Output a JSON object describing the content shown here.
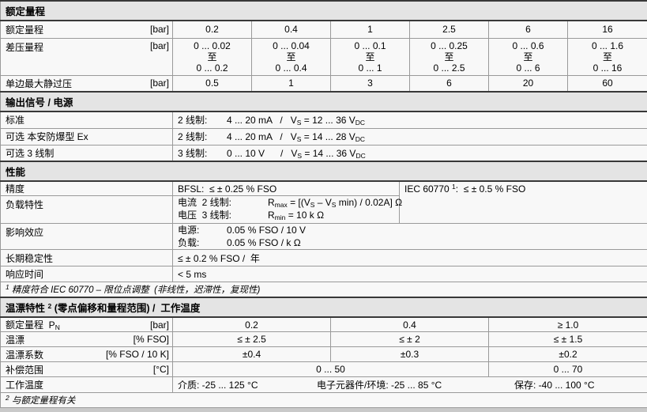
{
  "colors": {
    "header_bg": "#e4e4e4",
    "row_bg": "#f8f8f8",
    "border": "#9a9a9a",
    "dark_border": "#383838",
    "strip": "#c9c9c9"
  },
  "sections": {
    "rated_range": {
      "title": "额定量程",
      "rated": {
        "label": "额定量程",
        "unit": "[bar]",
        "values": [
          "0.2",
          "0.4",
          "1",
          "2.5",
          "6",
          "16"
        ]
      },
      "differential": {
        "label": "差压量程",
        "unit": "[bar]",
        "values": [
          "0 ... 0.02\n至\n0 ... 0.2",
          "0 ... 0.04\n至\n0 ... 0.4",
          "0 ... 0.1\n至\n0 ... 1",
          "0 ... 0.25\n至\n0 ... 2.5",
          "0 ... 0.6\n至\n0 ... 6",
          "0 ... 1.6\n至\n0 ... 16"
        ]
      },
      "max_static_overpressure": {
        "label": "单边最大静过压",
        "unit": "[bar]",
        "values": [
          "0.5",
          "1",
          "3",
          "6",
          "20",
          "60"
        ]
      }
    },
    "output_signal": {
      "title": "输出信号 / 电源",
      "standard": {
        "label": "标准",
        "wire": "2 线制:",
        "value": [
          {
            "t": "4 ... 20 mA   /   V"
          },
          {
            "t": "S",
            "sub": true
          },
          {
            "t": " = 12 ... 36 V"
          },
          {
            "t": "DC",
            "sub": true
          }
        ]
      },
      "ex_option": {
        "label": "可选  本安防爆型 Ex",
        "wire": "2 线制:",
        "value": [
          {
            "t": "4 ... 20 mA   /   V"
          },
          {
            "t": "S",
            "sub": true
          },
          {
            "t": " = 14 ... 28 V"
          },
          {
            "t": "DC",
            "sub": true
          }
        ]
      },
      "three_wire_option": {
        "label": "可选  3 线制",
        "wire": "3 线制:",
        "value": [
          {
            "t": "0 ... 10 V      /   V"
          },
          {
            "t": "S",
            "sub": true
          },
          {
            "t": " = 14 ... 36 V"
          },
          {
            "t": "DC",
            "sub": true
          }
        ]
      }
    },
    "performance": {
      "title": "性能",
      "accuracy": {
        "label": "精度",
        "bfsl": "BFSL:  ≤ ± 0.25 % FSO",
        "iec": [
          {
            "t": "IEC 60770 "
          },
          {
            "t": "1",
            "sup": true
          },
          {
            "t": ":  ≤ ± 0.5 % FSO"
          }
        ]
      },
      "load": {
        "label": "负载特性",
        "current": {
          "wire": "电流  2 线制:",
          "value": [
            {
              "t": "R"
            },
            {
              "t": "max",
              "sub": true
            },
            {
              "t": " = [(V"
            },
            {
              "t": "S",
              "sub": true
            },
            {
              "t": " – V"
            },
            {
              "t": "S",
              "sub": true
            },
            {
              "t": " min) / 0.02A] Ω"
            }
          ]
        },
        "voltage": {
          "wire": "电压  3 线制:",
          "value": [
            {
              "t": "R"
            },
            {
              "t": "min",
              "sub": true
            },
            {
              "t": " = 10 k Ω"
            }
          ]
        }
      },
      "influence": {
        "label": "影响效应",
        "supply": {
          "wire": "电源:",
          "value": "0.05 % FSO / 10 V"
        },
        "load": {
          "wire": "负载:",
          "value": "0.05 % FSO / k Ω"
        }
      },
      "stability": {
        "label": "长期稳定性",
        "value": "≤ ± 0.2 % FSO /  年"
      },
      "response": {
        "label": "响应时间",
        "value": "< 5 ms"
      },
      "footnote": [
        {
          "t": "1",
          "sup": true
        },
        {
          "t": " 精度符合 IEC 60770 – 限位点调整  (非线性，迟滞性，复现性)"
        }
      ]
    },
    "temperature": {
      "title": [
        {
          "t": "温漂特性 "
        },
        {
          "t": "2",
          "sup": true
        },
        {
          "t": " (零点偏移和量程范围) /  工作温度"
        }
      ],
      "nominal": {
        "label": [
          {
            "t": "额定量程  P"
          },
          {
            "t": "N",
            "sub": true
          }
        ],
        "unit": "[bar]",
        "values": [
          "0.2",
          "0.4",
          "≥ 1.0"
        ]
      },
      "drift": {
        "label": "温漂",
        "unit": "[% FSO]",
        "values": [
          "≤ ± 2.5",
          "≤ ± 2",
          "≤ ± 1.5"
        ]
      },
      "drift_coefficient": {
        "label": "温漂系数",
        "unit": "[% FSO / 10 K]",
        "values": [
          "±0.4",
          "±0.3",
          "±0.2"
        ]
      },
      "compensated_range": {
        "label": "补偿范围",
        "unit": "[°C]",
        "values": [
          "0 ... 50",
          "0 ... 70"
        ]
      },
      "operating": {
        "label": "工作温度",
        "medium": "介质: -25 ... 125 °C",
        "electronics": "电子元器件/环境: -25 ... 85 °C",
        "storage": "保存: -40 ... 100 °C"
      },
      "footnote": [
        {
          "t": "2",
          "sup": true
        },
        {
          "t": " 与额定量程有关"
        }
      ]
    }
  }
}
